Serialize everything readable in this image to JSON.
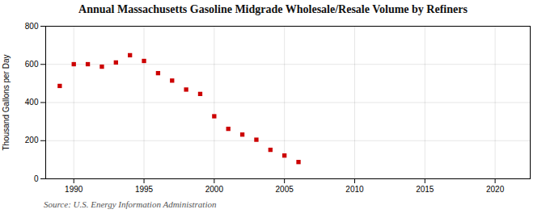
{
  "chart_data": {
    "type": "scatter",
    "title": "Annual Massachusetts Gasoline Midgrade Wholesale/Resale Volume by Refiners",
    "y_label": "Thousand Gallons per Day",
    "annotation": "Source: U.S. Energy Information Administration",
    "x": [
      1989,
      1990,
      1991,
      1992,
      1993,
      1994,
      1995,
      1996,
      1997,
      1998,
      1999,
      2000,
      2001,
      2002,
      2003,
      2004,
      2005,
      2006
    ],
    "values": [
      487,
      601,
      601,
      588,
      610,
      648,
      618,
      554,
      515,
      468,
      445,
      328,
      262,
      232,
      205,
      152,
      122,
      88
    ],
    "color": "#cc0000",
    "marker": "square",
    "xlim": [
      1988.0,
      2022.5
    ],
    "xticks": [
      1990,
      1995,
      2000,
      2005,
      2010,
      2015,
      2020
    ],
    "ylim": [
      0,
      800
    ],
    "yticks": [
      0,
      200,
      400,
      600,
      800
    ],
    "grid": true
  }
}
